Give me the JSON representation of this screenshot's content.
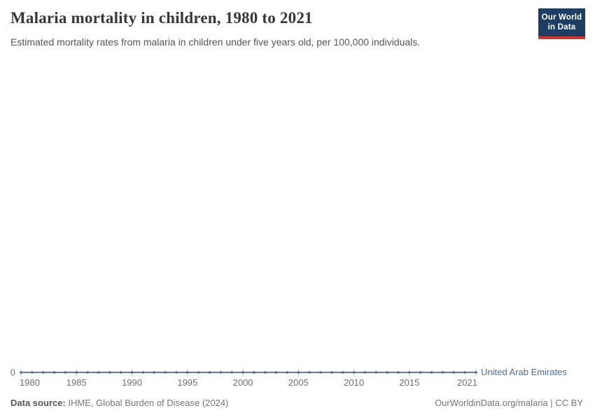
{
  "header": {
    "title": "Malaria mortality in children, 1980 to 2021",
    "subtitle": "Estimated mortality rates from malaria in children under five years old, per 100,000 individuals.",
    "logo_line1": "Our World",
    "logo_line2": "in Data"
  },
  "chart_data": {
    "type": "line",
    "title": "Malaria mortality in children, 1980 to 2021",
    "x": [
      1980,
      1981,
      1982,
      1983,
      1984,
      1985,
      1986,
      1987,
      1988,
      1989,
      1990,
      1991,
      1992,
      1993,
      1994,
      1995,
      1996,
      1997,
      1998,
      1999,
      2000,
      2001,
      2002,
      2003,
      2004,
      2005,
      2006,
      2007,
      2008,
      2009,
      2010,
      2011,
      2012,
      2013,
      2014,
      2015,
      2016,
      2017,
      2018,
      2019,
      2020,
      2021
    ],
    "x_tick_labels": [
      1980,
      1985,
      1990,
      1995,
      2000,
      2005,
      2010,
      2015,
      2021
    ],
    "y_tick_labels": [
      "0"
    ],
    "series": [
      {
        "name": "United Arab Emirates",
        "values": [
          0,
          0,
          0,
          0,
          0,
          0,
          0,
          0,
          0,
          0,
          0,
          0,
          0,
          0,
          0,
          0,
          0,
          0,
          0,
          0,
          0,
          0,
          0,
          0,
          0,
          0,
          0,
          0,
          0,
          0,
          0,
          0,
          0,
          0,
          0,
          0,
          0,
          0,
          0,
          0,
          0,
          0
        ]
      }
    ],
    "xlabel": "",
    "ylabel": "",
    "grid": false,
    "legend_position": "end-of-line",
    "markers": true
  },
  "footer": {
    "source_label": "Data source:",
    "source_value": "IHME, Global Burden of Disease (2024)",
    "link": "OurWorldinData.org/malaria | CC BY"
  },
  "colors": {
    "line": "#4c6a9c",
    "axis_tick": "#c8c8c8",
    "axis_text": "#6e6e6e",
    "logo_navy": "#1d3d63",
    "logo_red": "#d0342c"
  }
}
